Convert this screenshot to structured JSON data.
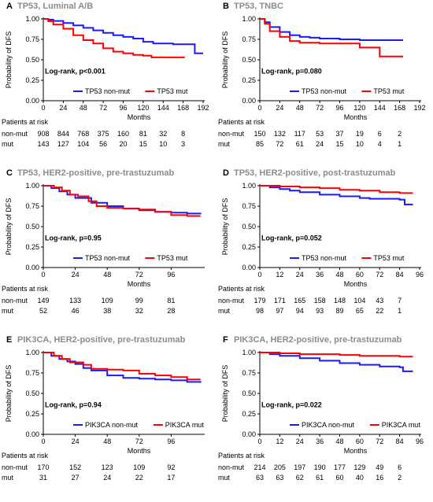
{
  "colors": {
    "non_mut": "#1a1aff",
    "mut": "#ff0000",
    "title_gray": "#8c8c8c"
  },
  "common": {
    "ylabel": "Probability of DFS",
    "xlabel": "Months",
    "risk_header": "Patients at risk",
    "risk_row_labels": [
      "non-mut",
      "mut"
    ]
  },
  "chart_data": [
    {
      "type": "line",
      "panel_label": "A",
      "title": "TP53, Luminal A/B",
      "xticks": [
        0,
        24,
        48,
        72,
        96,
        120,
        144,
        168,
        192
      ],
      "yticks": [
        "0.00",
        "0.25",
        "0.50",
        "0.75",
        "1.00"
      ],
      "xlim": [
        0,
        192
      ],
      "ylim": [
        0,
        1
      ],
      "annotation": "Log-rank, p<0.001",
      "series": [
        {
          "name": "TP53 non-mut",
          "color_key": "non_mut",
          "points": [
            [
              0,
              1.0
            ],
            [
              6,
              0.99
            ],
            [
              12,
              0.975
            ],
            [
              24,
              0.95
            ],
            [
              36,
              0.92
            ],
            [
              48,
              0.89
            ],
            [
              60,
              0.86
            ],
            [
              72,
              0.83
            ],
            [
              84,
              0.8
            ],
            [
              96,
              0.78
            ],
            [
              108,
              0.76
            ],
            [
              120,
              0.72
            ],
            [
              132,
              0.7
            ],
            [
              156,
              0.69
            ],
            [
              170,
              0.69
            ],
            [
              182,
              0.58
            ],
            [
              192,
              0.58
            ]
          ]
        },
        {
          "name": "TP53 mut",
          "color_key": "mut",
          "points": [
            [
              0,
              1.0
            ],
            [
              6,
              0.97
            ],
            [
              12,
              0.93
            ],
            [
              24,
              0.88
            ],
            [
              36,
              0.8
            ],
            [
              48,
              0.74
            ],
            [
              60,
              0.7
            ],
            [
              72,
              0.64
            ],
            [
              84,
              0.6
            ],
            [
              96,
              0.58
            ],
            [
              108,
              0.56
            ],
            [
              120,
              0.55
            ],
            [
              130,
              0.53
            ],
            [
              170,
              0.53
            ]
          ]
        }
      ],
      "risk_values": [
        [
          "908",
          "844",
          "768",
          "375",
          "160",
          "81",
          "32",
          "8"
        ],
        [
          "143",
          "127",
          "104",
          "56",
          "20",
          "15",
          "10",
          "3"
        ]
      ]
    },
    {
      "type": "line",
      "panel_label": "B",
      "title": "TP53, TNBC",
      "xticks": [
        0,
        24,
        48,
        72,
        96,
        120,
        144,
        168,
        192
      ],
      "yticks": [
        "0.00",
        "0.25",
        "0.50",
        "0.75",
        "1.00"
      ],
      "xlim": [
        0,
        192
      ],
      "ylim": [
        0,
        1
      ],
      "annotation": "Log-rank, p=0.080",
      "series": [
        {
          "name": "TP53 non-mut",
          "color_key": "non_mut",
          "points": [
            [
              0,
              1.0
            ],
            [
              6,
              0.96
            ],
            [
              12,
              0.9
            ],
            [
              24,
              0.84
            ],
            [
              36,
              0.8
            ],
            [
              48,
              0.78
            ],
            [
              60,
              0.77
            ],
            [
              72,
              0.76
            ],
            [
              96,
              0.75
            ],
            [
              120,
              0.74
            ],
            [
              144,
              0.74
            ],
            [
              172,
              0.74
            ]
          ]
        },
        {
          "name": "TP53 mut",
          "color_key": "mut",
          "points": [
            [
              0,
              1.0
            ],
            [
              6,
              0.94
            ],
            [
              12,
              0.85
            ],
            [
              24,
              0.78
            ],
            [
              36,
              0.73
            ],
            [
              48,
              0.71
            ],
            [
              72,
              0.7
            ],
            [
              96,
              0.7
            ],
            [
              120,
              0.65
            ],
            [
              144,
              0.54
            ],
            [
              172,
              0.54
            ]
          ]
        }
      ],
      "risk_values": [
        [
          "150",
          "132",
          "117",
          "53",
          "37",
          "19",
          "6",
          "2"
        ],
        [
          "85",
          "72",
          "61",
          "24",
          "15",
          "10",
          "4",
          "1"
        ]
      ]
    },
    {
      "type": "line",
      "panel_label": "C",
      "title": "TP53, HER2-positive, pre-trastuzumab",
      "xticks": [
        0,
        24,
        48,
        72,
        96
      ],
      "yticks": [
        "0.00",
        "0.25",
        "0.50",
        "0.75",
        "1.00"
      ],
      "xlim": [
        0,
        120
      ],
      "ylim": [
        0,
        1
      ],
      "annotation": "Log-rank, p=0.95",
      "series": [
        {
          "name": "TP53 non-mut",
          "color_key": "non_mut",
          "points": [
            [
              0,
              1.0
            ],
            [
              6,
              0.97
            ],
            [
              12,
              0.93
            ],
            [
              18,
              0.89
            ],
            [
              24,
              0.85
            ],
            [
              36,
              0.79
            ],
            [
              48,
              0.75
            ],
            [
              60,
              0.72
            ],
            [
              72,
              0.7
            ],
            [
              84,
              0.68
            ],
            [
              96,
              0.67
            ],
            [
              108,
              0.66
            ],
            [
              118,
              0.65
            ]
          ]
        },
        {
          "name": "TP53 mut",
          "color_key": "mut",
          "points": [
            [
              0,
              1.0
            ],
            [
              8,
              0.98
            ],
            [
              14,
              0.94
            ],
            [
              20,
              0.89
            ],
            [
              26,
              0.87
            ],
            [
              34,
              0.81
            ],
            [
              40,
              0.75
            ],
            [
              48,
              0.73
            ],
            [
              60,
              0.72
            ],
            [
              72,
              0.71
            ],
            [
              84,
              0.68
            ],
            [
              96,
              0.64
            ],
            [
              108,
              0.63
            ],
            [
              118,
              0.63
            ]
          ]
        }
      ],
      "risk_values": [
        [
          "149",
          "133",
          "109",
          "99",
          "81"
        ],
        [
          "52",
          "46",
          "38",
          "32",
          "28"
        ]
      ]
    },
    {
      "type": "line",
      "panel_label": "D",
      "title": "TP53, HER2-positive, post-trastuzumab",
      "xticks": [
        0,
        12,
        24,
        36,
        48,
        60,
        72,
        84,
        96
      ],
      "yticks": [
        "0.00",
        "0.25",
        "0.50",
        "0.75",
        "1.00"
      ],
      "xlim": [
        0,
        96
      ],
      "ylim": [
        0,
        1
      ],
      "annotation": "Log-rank, p=0.052",
      "series": [
        {
          "name": "TP53 non-mut",
          "color_key": "non_mut",
          "points": [
            [
              0,
              1.0
            ],
            [
              6,
              0.98
            ],
            [
              12,
              0.96
            ],
            [
              18,
              0.94
            ],
            [
              24,
              0.92
            ],
            [
              36,
              0.89
            ],
            [
              48,
              0.87
            ],
            [
              60,
              0.85
            ],
            [
              66,
              0.84
            ],
            [
              72,
              0.84
            ],
            [
              84,
              0.83
            ],
            [
              87,
              0.77
            ],
            [
              92,
              0.77
            ]
          ]
        },
        {
          "name": "TP53 mut",
          "color_key": "mut",
          "points": [
            [
              0,
              1.0
            ],
            [
              12,
              0.99
            ],
            [
              24,
              0.98
            ],
            [
              36,
              0.97
            ],
            [
              48,
              0.95
            ],
            [
              60,
              0.94
            ],
            [
              72,
              0.92
            ],
            [
              84,
              0.91
            ],
            [
              92,
              0.91
            ]
          ]
        }
      ],
      "risk_values": [
        [
          "179",
          "171",
          "165",
          "158",
          "148",
          "104",
          "43",
          "7"
        ],
        [
          "98",
          "97",
          "94",
          "93",
          "89",
          "65",
          "22",
          "1"
        ]
      ]
    },
    {
      "type": "line",
      "panel_label": "E",
      "title": "PIK3CA,  HER2-positive, pre-trastuzumab",
      "xticks": [
        0,
        24,
        48,
        72,
        96
      ],
      "yticks": [
        "0.00",
        "0.25",
        "0.50",
        "0.75",
        "1.00"
      ],
      "xlim": [
        0,
        120
      ],
      "ylim": [
        0,
        1
      ],
      "annotation": "Log-rank, p=0.94",
      "series": [
        {
          "name": "PIK3CA non-mut",
          "color_key": "non_mut",
          "points": [
            [
              0,
              1.0
            ],
            [
              6,
              0.96
            ],
            [
              12,
              0.92
            ],
            [
              18,
              0.89
            ],
            [
              24,
              0.86
            ],
            [
              30,
              0.81
            ],
            [
              36,
              0.78
            ],
            [
              48,
              0.72
            ],
            [
              60,
              0.69
            ],
            [
              72,
              0.68
            ],
            [
              84,
              0.67
            ],
            [
              96,
              0.66
            ],
            [
              108,
              0.64
            ],
            [
              118,
              0.63
            ]
          ]
        },
        {
          "name": "PIK3CA mut",
          "color_key": "mut",
          "points": [
            [
              0,
              1.0
            ],
            [
              8,
              0.96
            ],
            [
              14,
              0.92
            ],
            [
              20,
              0.88
            ],
            [
              30,
              0.85
            ],
            [
              36,
              0.8
            ],
            [
              48,
              0.79
            ],
            [
              60,
              0.78
            ],
            [
              72,
              0.74
            ],
            [
              84,
              0.72
            ],
            [
              96,
              0.7
            ],
            [
              108,
              0.67
            ],
            [
              118,
              0.67
            ]
          ]
        }
      ],
      "risk_values": [
        [
          "170",
          "152",
          "123",
          "109",
          "92"
        ],
        [
          "31",
          "27",
          "24",
          "22",
          "17"
        ]
      ]
    },
    {
      "type": "line",
      "panel_label": "F",
      "title": "PIK3CA, HER2-positive, pre-trastuzumab",
      "xticks": [
        0,
        12,
        24,
        36,
        48,
        60,
        72,
        84,
        96
      ],
      "yticks": [
        "0.00",
        "0.25",
        "0.50",
        "0.75",
        "1.00"
      ],
      "xlim": [
        0,
        96
      ],
      "ylim": [
        0,
        1
      ],
      "annotation": "Log-rank, p=0.022",
      "series": [
        {
          "name": "PIK3CA non-mut",
          "color_key": "non_mut",
          "points": [
            [
              0,
              1.0
            ],
            [
              6,
              0.98
            ],
            [
              12,
              0.96
            ],
            [
              24,
              0.93
            ],
            [
              36,
              0.9
            ],
            [
              48,
              0.87
            ],
            [
              60,
              0.85
            ],
            [
              72,
              0.83
            ],
            [
              84,
              0.82
            ],
            [
              86,
              0.77
            ],
            [
              92,
              0.77
            ]
          ]
        },
        {
          "name": "PIK3CA mut",
          "color_key": "mut",
          "points": [
            [
              0,
              1.0
            ],
            [
              12,
              0.99
            ],
            [
              24,
              0.98
            ],
            [
              36,
              0.98
            ],
            [
              48,
              0.97
            ],
            [
              60,
              0.96
            ],
            [
              72,
              0.96
            ],
            [
              84,
              0.95
            ],
            [
              92,
              0.95
            ]
          ]
        }
      ],
      "risk_values": [
        [
          "214",
          "205",
          "197",
          "190",
          "177",
          "129",
          "49",
          "6"
        ],
        [
          "63",
          "63",
          "62",
          "61",
          "60",
          "40",
          "16",
          "2"
        ]
      ]
    }
  ]
}
